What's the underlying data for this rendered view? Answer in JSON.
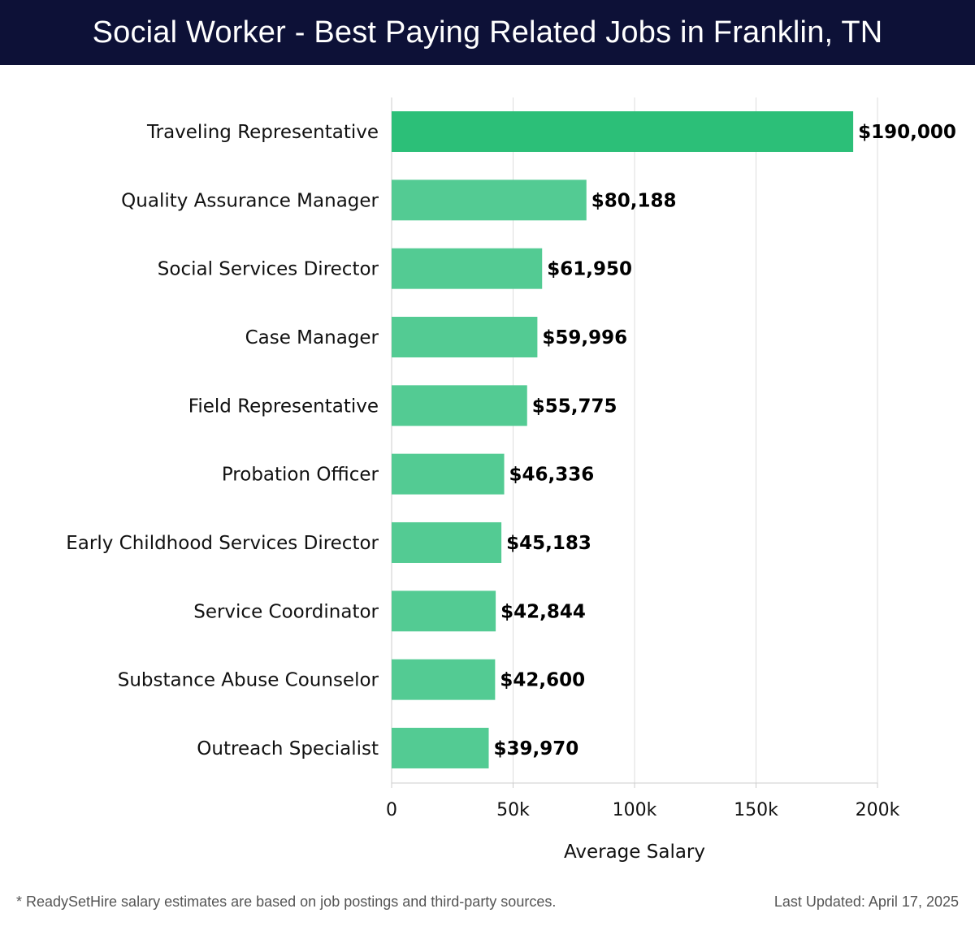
{
  "header": {
    "title": "Social Worker - Best Paying Related Jobs in Franklin, TN"
  },
  "colors": {
    "header_bg": "#0d1137",
    "bar_top": "#2cbf78",
    "bar": "#53cb93",
    "grid": "#dddddd",
    "axis": "#cccccc",
    "text": "#111111"
  },
  "chart_data": {
    "type": "bar",
    "orientation": "horizontal",
    "categories": [
      "Traveling Representative",
      "Quality Assurance Manager",
      "Social Services Director",
      "Case Manager",
      "Field Representative",
      "Probation Officer",
      "Early Childhood Services Director",
      "Service Coordinator",
      "Substance Abuse Counselor",
      "Outreach Specialist"
    ],
    "values": [
      190000,
      80188,
      61950,
      59996,
      55775,
      46336,
      45183,
      42844,
      42600,
      39970
    ],
    "value_labels": [
      "$190,000",
      "$80,188",
      "$61,950",
      "$59,996",
      "$55,775",
      "$46,336",
      "$45,183",
      "$42,844",
      "$42,600",
      "$39,970"
    ],
    "xlabel": "Average Salary",
    "ylabel": "",
    "xlim": [
      0,
      200000
    ],
    "x_ticks": [
      0,
      50000,
      100000,
      150000,
      200000
    ],
    "x_tick_labels": [
      "0",
      "50k",
      "100k",
      "150k",
      "200k"
    ],
    "grid": true
  },
  "footer": {
    "note": "* ReadySetHire salary estimates are based on job postings and third-party sources.",
    "updated": "Last Updated: April 17, 2025"
  }
}
